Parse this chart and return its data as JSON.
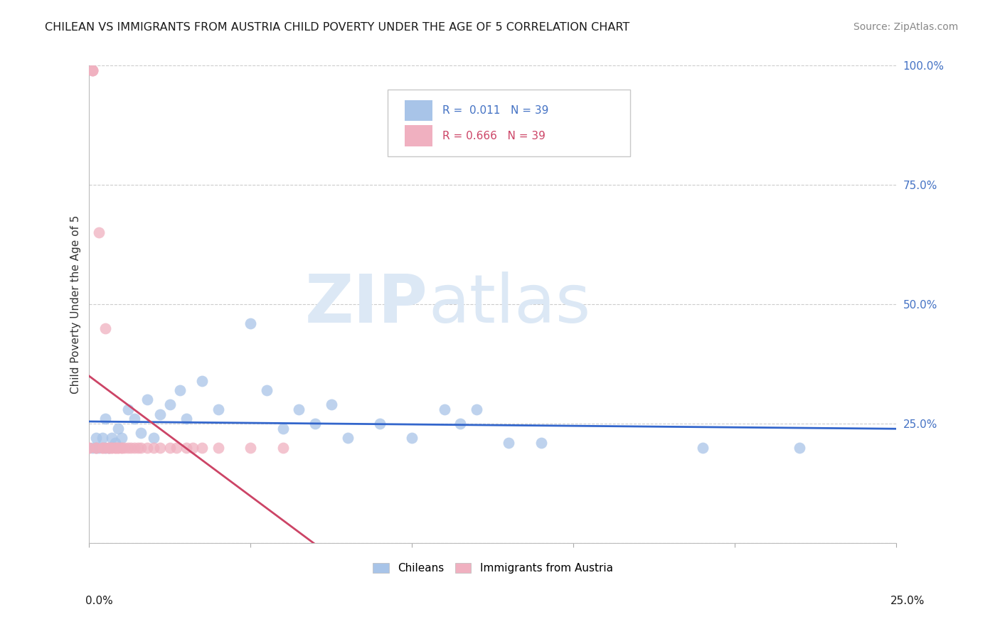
{
  "title": "CHILEAN VS IMMIGRANTS FROM AUSTRIA CHILD POVERTY UNDER THE AGE OF 5 CORRELATION CHART",
  "source": "Source: ZipAtlas.com",
  "ylabel": "Child Poverty Under the Age of 5",
  "xlim": [
    0.0,
    0.25
  ],
  "ylim": [
    0.0,
    1.0
  ],
  "chilean_R": "0.011",
  "chilean_N": "39",
  "austria_R": "0.666",
  "austria_N": "39",
  "blue_color": "#a8c4e8",
  "pink_color": "#f0b0c0",
  "blue_line_color": "#3366cc",
  "pink_line_color": "#cc4466",
  "watermark_text_zip": "ZIP",
  "watermark_text_atlas": "atlas",
  "watermark_color": "#dce8f5",
  "title_color": "#1a1a1a",
  "source_color": "#888888",
  "chileans_x": [
    0.001,
    0.002,
    0.003,
    0.004,
    0.005,
    0.005,
    0.006,
    0.007,
    0.008,
    0.009,
    0.01,
    0.012,
    0.014,
    0.015,
    0.016,
    0.018,
    0.02,
    0.022,
    0.025,
    0.028,
    0.03,
    0.035,
    0.04,
    0.05,
    0.055,
    0.06,
    0.065,
    0.07,
    0.075,
    0.08,
    0.09,
    0.1,
    0.11,
    0.115,
    0.12,
    0.13,
    0.14,
    0.19,
    0.22
  ],
  "chileans_y": [
    0.2,
    0.19,
    0.21,
    0.2,
    0.22,
    0.26,
    0.2,
    0.23,
    0.21,
    0.24,
    0.22,
    0.28,
    0.25,
    0.2,
    0.23,
    0.3,
    0.22,
    0.26,
    0.28,
    0.32,
    0.25,
    0.33,
    0.27,
    0.46,
    0.32,
    0.23,
    0.27,
    0.24,
    0.28,
    0.22,
    0.24,
    0.22,
    0.28,
    0.24,
    0.27,
    0.21,
    0.21,
    0.2,
    0.2
  ],
  "austria_x": [
    0.0,
    0.0,
    0.0,
    0.001,
    0.001,
    0.002,
    0.002,
    0.003,
    0.003,
    0.003,
    0.004,
    0.004,
    0.004,
    0.005,
    0.005,
    0.005,
    0.006,
    0.006,
    0.007,
    0.007,
    0.007,
    0.008,
    0.008,
    0.009,
    0.009,
    0.01,
    0.01,
    0.011,
    0.012,
    0.013,
    0.014,
    0.015,
    0.016,
    0.018,
    0.02,
    0.022,
    0.025,
    0.03,
    0.05
  ],
  "austria_y": [
    0.98,
    0.99,
    1.0,
    0.2,
    0.2,
    0.2,
    0.2,
    0.2,
    0.2,
    0.65,
    0.2,
    0.2,
    0.2,
    0.45,
    0.2,
    0.2,
    0.2,
    0.2,
    0.2,
    0.2,
    0.2,
    0.2,
    0.2,
    0.2,
    0.2,
    0.2,
    0.2,
    0.2,
    0.2,
    0.2,
    0.2,
    0.2,
    0.2,
    0.2,
    0.2,
    0.2,
    0.2,
    0.2,
    0.2
  ]
}
